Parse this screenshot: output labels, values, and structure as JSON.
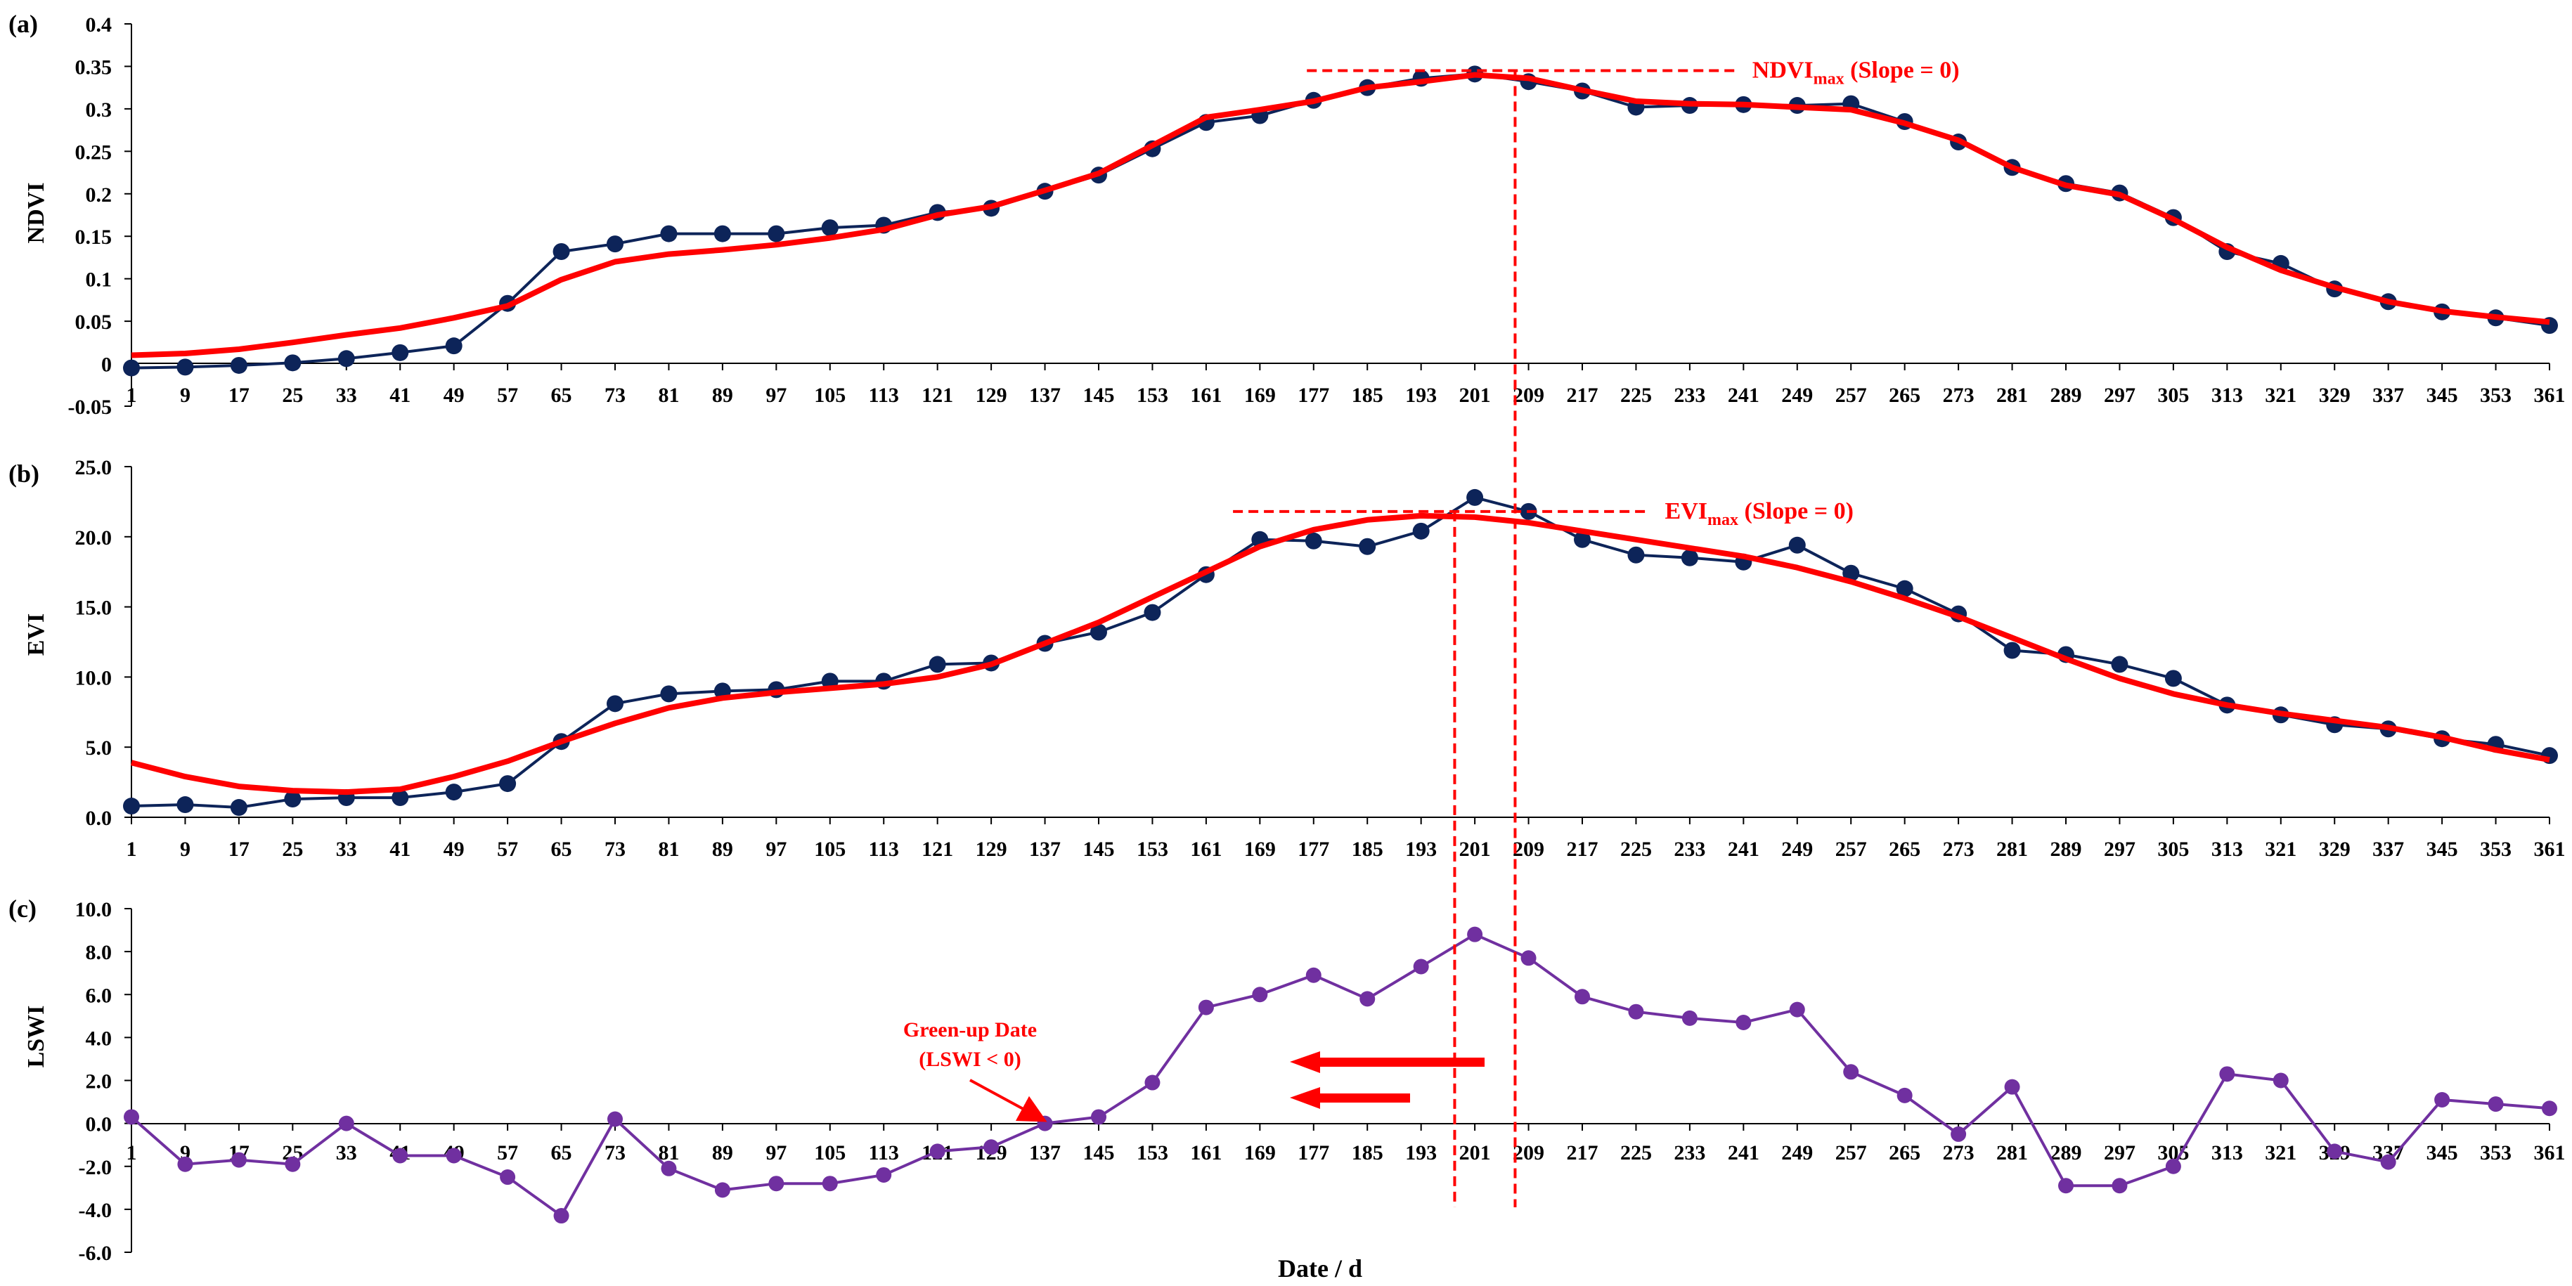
{
  "colors": {
    "observed": "#0d2459",
    "fitted": "#ff0000",
    "lswi": "#7030a0",
    "axis": "#000000",
    "annotation": "#ff0000"
  },
  "x_axis_label": "Date / d",
  "chart_data": [
    {
      "type": "line",
      "panel_label": "(a)",
      "ylabel": "NDVI",
      "ylim": [
        -0.05,
        0.4
      ],
      "yticks": [
        "0.4",
        "0.35",
        "0.3",
        "0.25",
        "0.2",
        "0.15",
        "0.1",
        "0.05",
        "0",
        "-0.05"
      ],
      "x": [
        1,
        9,
        17,
        25,
        33,
        41,
        49,
        57,
        65,
        73,
        81,
        89,
        97,
        105,
        113,
        121,
        129,
        137,
        145,
        153,
        161,
        169,
        177,
        185,
        193,
        201,
        209,
        217,
        225,
        233,
        241,
        249,
        257,
        265,
        273,
        281,
        289,
        297,
        305,
        313,
        321,
        329,
        337,
        345,
        353,
        361
      ],
      "series": [
        {
          "name": "NDVI observed",
          "values": [
            -0.005,
            -0.004,
            -0.002,
            0.001,
            0.006,
            0.013,
            0.021,
            0.071,
            0.132,
            0.141,
            0.153,
            0.153,
            0.153,
            0.16,
            0.163,
            0.178,
            0.183,
            0.203,
            0.222,
            0.253,
            0.284,
            0.292,
            0.31,
            0.325,
            0.336,
            0.341,
            0.332,
            0.321,
            0.302,
            0.304,
            0.305,
            0.304,
            0.306,
            0.285,
            0.261,
            0.231,
            0.212,
            0.201,
            0.172,
            0.132,
            0.118,
            0.088,
            0.073,
            0.061,
            0.054,
            0.045
          ]
        },
        {
          "name": "NDVI fitted",
          "values": [
            0.01,
            0.012,
            0.017,
            0.025,
            0.034,
            0.042,
            0.054,
            0.068,
            0.099,
            0.12,
            0.129,
            0.134,
            0.14,
            0.148,
            0.158,
            0.175,
            0.185,
            0.204,
            0.224,
            0.257,
            0.29,
            0.299,
            0.309,
            0.325,
            0.332,
            0.34,
            0.336,
            0.322,
            0.309,
            0.306,
            0.305,
            0.302,
            0.299,
            0.283,
            0.263,
            0.231,
            0.21,
            0.199,
            0.17,
            0.137,
            0.11,
            0.09,
            0.073,
            0.062,
            0.055,
            0.049
          ]
        }
      ],
      "annotation": {
        "main": "NDVI",
        "sub": "max",
        "rest": " (Slope = 0)",
        "y_value": 0.345,
        "x_from": 176,
        "x_to": 240
      }
    },
    {
      "type": "line",
      "panel_label": "(b)",
      "ylabel": "EVI",
      "ylim": [
        0,
        25
      ],
      "yticks": [
        "25.0",
        "20.0",
        "15.0",
        "10.0",
        "5.0",
        "0.0"
      ],
      "x": [
        1,
        9,
        17,
        25,
        33,
        41,
        49,
        57,
        65,
        73,
        81,
        89,
        97,
        105,
        113,
        121,
        129,
        137,
        145,
        153,
        161,
        169,
        177,
        185,
        193,
        201,
        209,
        217,
        225,
        233,
        241,
        249,
        257,
        265,
        273,
        281,
        289,
        297,
        305,
        313,
        321,
        329,
        337,
        345,
        353,
        361
      ],
      "series": [
        {
          "name": "EVI observed",
          "values": [
            0.8,
            0.9,
            0.7,
            1.3,
            1.4,
            1.4,
            1.8,
            2.4,
            5.4,
            8.1,
            8.8,
            9.0,
            9.1,
            9.7,
            9.7,
            10.9,
            11.0,
            12.4,
            13.2,
            14.6,
            17.3,
            19.8,
            19.7,
            19.3,
            20.4,
            22.8,
            21.8,
            19.8,
            18.7,
            18.5,
            18.2,
            19.4,
            17.4,
            16.3,
            14.5,
            11.9,
            11.6,
            10.9,
            9.9,
            8.0,
            7.3,
            6.6,
            6.3,
            5.6,
            5.2,
            4.4
          ]
        },
        {
          "name": "EVI fitted",
          "values": [
            3.9,
            2.9,
            2.2,
            1.9,
            1.8,
            2.0,
            2.9,
            4.0,
            5.4,
            6.7,
            7.8,
            8.5,
            8.9,
            9.2,
            9.5,
            10.0,
            10.9,
            12.4,
            13.9,
            15.7,
            17.5,
            19.3,
            20.5,
            21.2,
            21.5,
            21.4,
            21.0,
            20.4,
            19.8,
            19.2,
            18.6,
            17.8,
            16.8,
            15.6,
            14.3,
            12.8,
            11.3,
            9.9,
            8.8,
            8.0,
            7.4,
            6.9,
            6.4,
            5.7,
            4.8,
            4.1
          ]
        }
      ],
      "annotation": {
        "main": "EVI",
        "sub": "max",
        "rest": " (Slope = 0)",
        "y_value": 21.8,
        "x_from": 165,
        "x_to": 227
      }
    },
    {
      "type": "line",
      "panel_label": "(c)",
      "ylabel": "LSWI",
      "ylim": [
        -6,
        10
      ],
      "yticks": [
        "10.0",
        "8.0",
        "6.0",
        "4.0",
        "2.0",
        "0.0",
        "-2.0",
        "-4.0",
        "-6.0"
      ],
      "x": [
        1,
        9,
        17,
        25,
        33,
        41,
        49,
        57,
        65,
        73,
        81,
        89,
        97,
        105,
        113,
        121,
        129,
        137,
        145,
        153,
        161,
        169,
        177,
        185,
        193,
        201,
        209,
        217,
        225,
        233,
        241,
        249,
        257,
        265,
        273,
        281,
        289,
        297,
        305,
        313,
        321,
        329,
        337,
        345,
        353,
        361
      ],
      "series": [
        {
          "name": "LSWI",
          "values": [
            0.3,
            -1.9,
            -1.7,
            -1.9,
            0.0,
            -1.5,
            -1.5,
            -2.5,
            -4.3,
            0.2,
            -2.1,
            -3.1,
            -2.8,
            -2.8,
            -2.4,
            -1.3,
            -1.1,
            0.0,
            0.3,
            1.9,
            5.4,
            6.0,
            6.9,
            5.8,
            7.3,
            8.8,
            7.7,
            5.9,
            5.2,
            4.9,
            4.7,
            5.3,
            2.4,
            1.3,
            -0.5,
            1.7,
            -2.9,
            -2.9,
            -2.0,
            2.3,
            2.0,
            -1.3,
            -1.8,
            1.1,
            0.9,
            0.7
          ]
        }
      ],
      "annotation": {
        "line1": "Green-up Date",
        "line2": "(LSWI < 0)",
        "target_x": 137,
        "target_y": 0.0
      }
    }
  ],
  "vlines": {
    "evi_peak_day": 198,
    "ndvi_peak_day": 207
  }
}
